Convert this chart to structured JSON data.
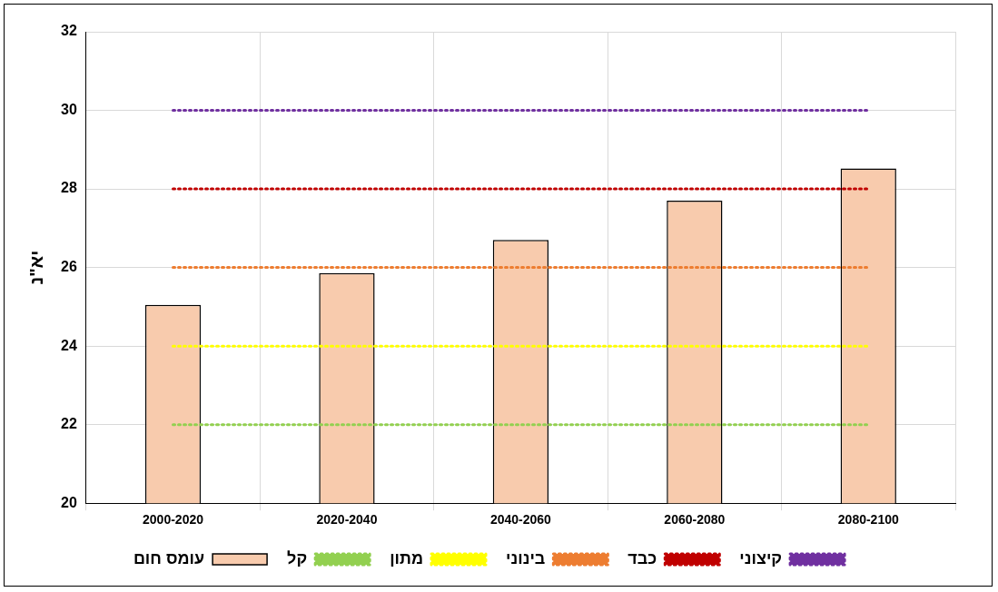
{
  "chart_data": {
    "type": "bar",
    "ylabel": "יא\"נ",
    "categories": [
      "2000-2020",
      "2020-2040",
      "2040-2060",
      "2060-2080",
      "2080-2100"
    ],
    "ylim": [
      20,
      32
    ],
    "yticks": [
      20,
      22,
      24,
      26,
      28,
      30,
      32
    ],
    "grid": true,
    "legend": "bottom",
    "marker": "none",
    "series": [
      {
        "name": "עומס חום",
        "color": "#f8cbad",
        "values": [
          25.05,
          25.86,
          26.7,
          27.7,
          28.52
        ]
      },
      {
        "name": "קל",
        "type": "line",
        "line_style": "dotted",
        "color": "#92d050",
        "values": [
          22,
          22,
          22,
          22,
          22
        ]
      },
      {
        "name": "מתון",
        "type": "line",
        "line_style": "dotted",
        "color": "#ffff00",
        "values": [
          24,
          24,
          24,
          24,
          24
        ]
      },
      {
        "name": "בינוני",
        "type": "line",
        "line_style": "dotted",
        "color": "#ed7d31",
        "values": [
          26,
          26,
          26,
          26,
          26
        ]
      },
      {
        "name": "כבד",
        "type": "line",
        "line_style": "dotted",
        "color": "#c00000",
        "values": [
          28,
          28,
          28,
          28,
          28
        ]
      },
      {
        "name": "קיצוני",
        "type": "line",
        "line_style": "dotted",
        "color": "#7030a0",
        "values": [
          30,
          30,
          30,
          30,
          30
        ]
      }
    ]
  }
}
